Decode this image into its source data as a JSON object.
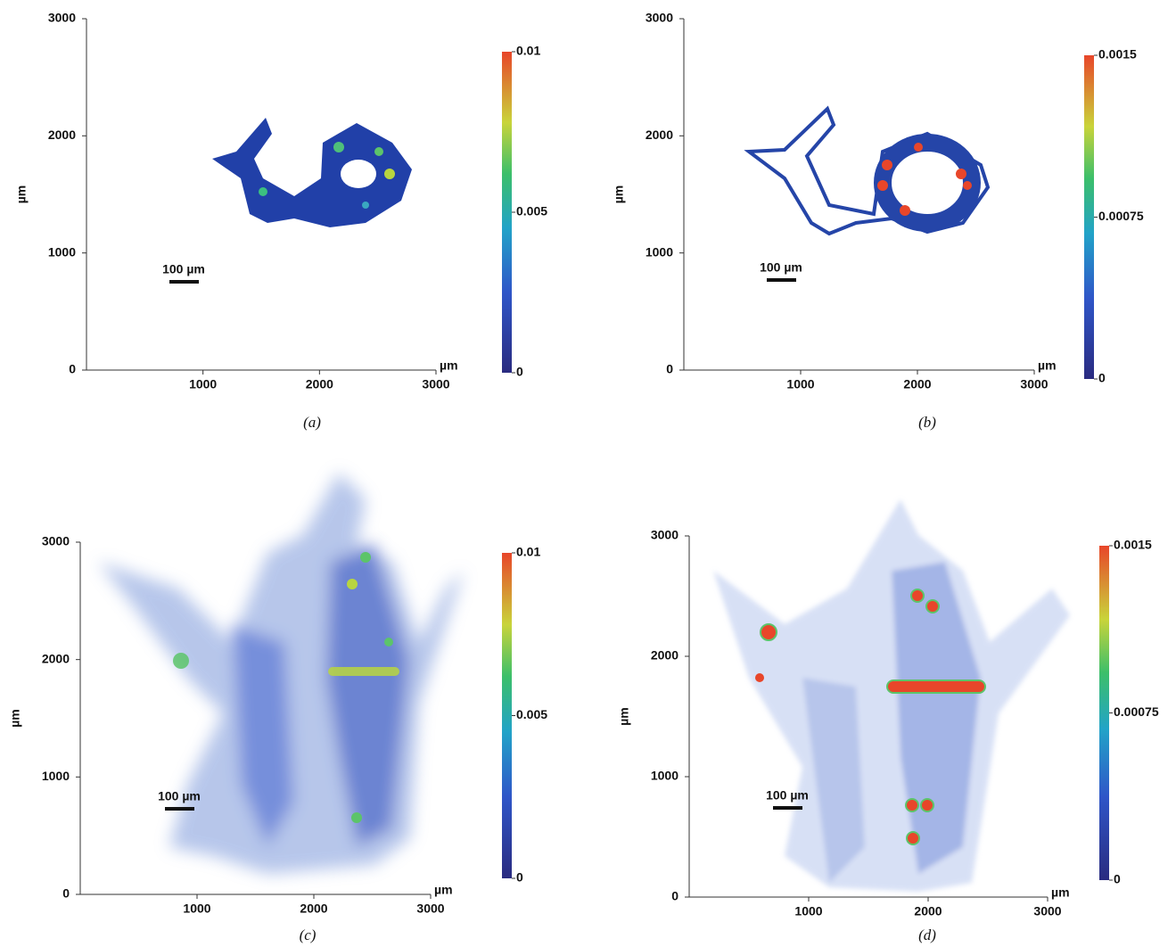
{
  "chart_data": [
    {
      "type": "image",
      "caption": "(a)",
      "xlabel": "µm",
      "ylabel": "µm",
      "xlim": [
        0,
        3000
      ],
      "ylim": [
        0,
        3000
      ],
      "xticks": [
        1000,
        2000,
        3000
      ],
      "yticks": [
        0,
        1000,
        2000,
        3000
      ],
      "scale_bar": "100 µm",
      "colorbar": {
        "lim": [
          0,
          0.01
        ],
        "ticks": [
          0,
          0.005,
          0.01
        ]
      }
    },
    {
      "type": "image",
      "caption": "(b)",
      "xlabel": "µm",
      "ylabel": "µm",
      "xlim": [
        0,
        3000
      ],
      "ylim": [
        0,
        3000
      ],
      "xticks": [
        1000,
        2000,
        3000
      ],
      "yticks": [
        0,
        1000,
        2000,
        3000
      ],
      "scale_bar": "100 µm",
      "colorbar": {
        "lim": [
          0,
          0.0015
        ],
        "ticks": [
          0,
          0.00075,
          0.0015
        ]
      }
    },
    {
      "type": "image",
      "caption": "(c)",
      "xlabel": "µm",
      "ylabel": "µm",
      "xlim": [
        0,
        3000
      ],
      "ylim": [
        0,
        3000
      ],
      "xticks": [
        1000,
        2000,
        3000
      ],
      "yticks": [
        0,
        1000,
        2000,
        3000
      ],
      "scale_bar": "100 µm",
      "colorbar": {
        "lim": [
          0,
          0.01
        ],
        "ticks": [
          0,
          0.005,
          0.01
        ]
      }
    },
    {
      "type": "image",
      "caption": "(d)",
      "xlabel": "µm",
      "ylabel": "µm",
      "xlim": [
        0,
        3000
      ],
      "ylim": [
        0,
        3000
      ],
      "xticks": [
        1000,
        2000,
        3000
      ],
      "yticks": [
        0,
        1000,
        2000,
        3000
      ],
      "scale_bar": "100 µm",
      "colorbar": {
        "lim": [
          0,
          0.0015
        ],
        "ticks": [
          0,
          0.00075,
          0.0015
        ]
      }
    }
  ]
}
